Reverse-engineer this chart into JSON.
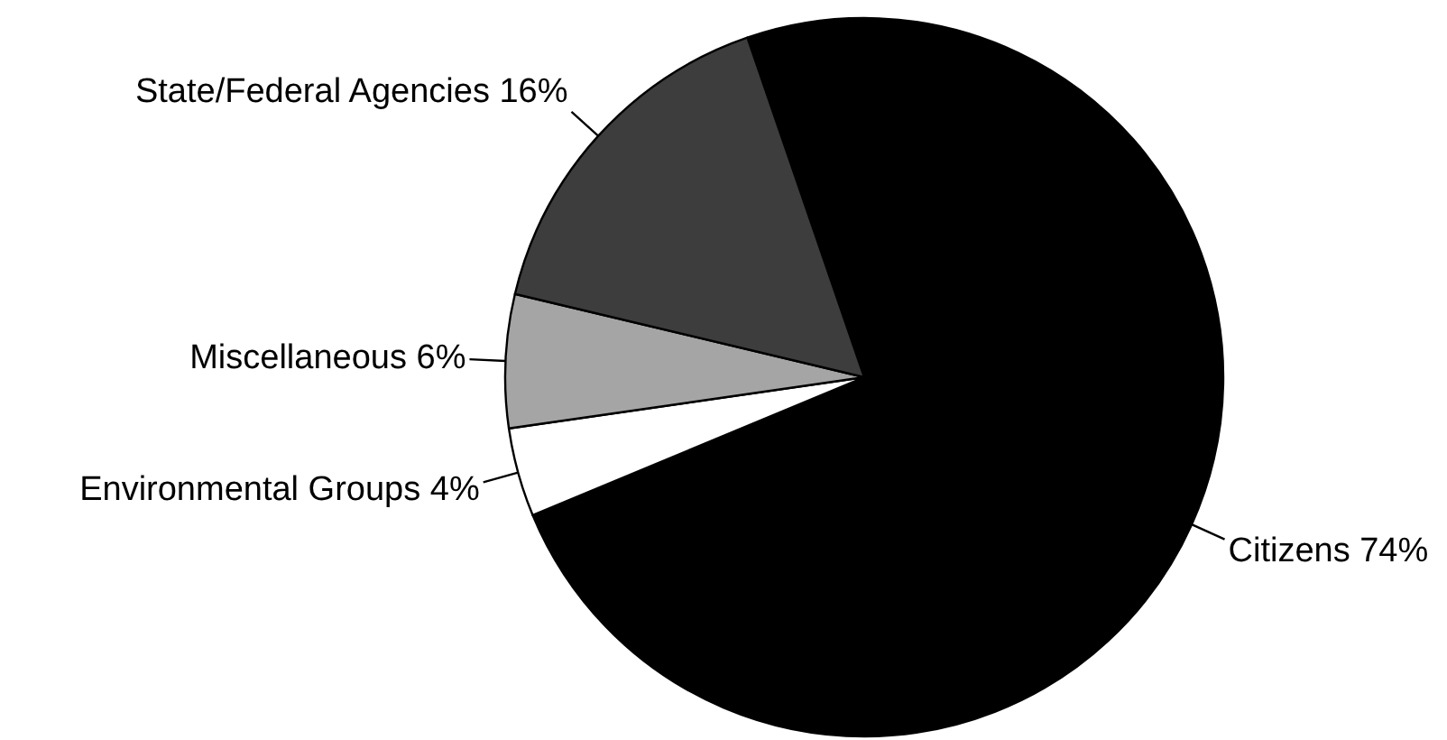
{
  "chart_data": {
    "type": "pie",
    "categories": [
      "Citizens",
      "Environmental Groups",
      "Miscellaneous",
      "State/Federal Agencies"
    ],
    "values": [
      74,
      4,
      6,
      16
    ],
    "value_labels": [
      "74%",
      "4%",
      "6%",
      "16%"
    ],
    "colors": [
      "#000000",
      "#ffffff",
      "#a5a5a5",
      "#3d3d3d"
    ]
  }
}
